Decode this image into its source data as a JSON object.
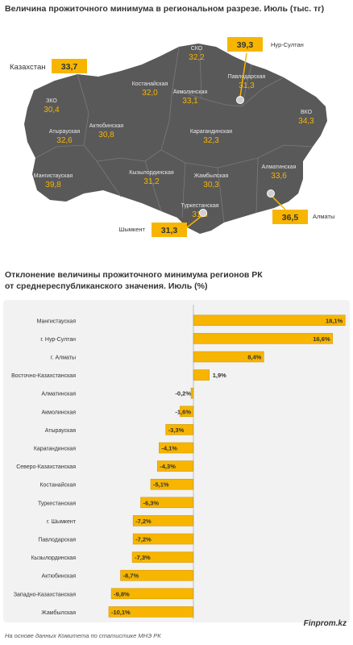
{
  "map_title": "Величина прожиточного минимума в региональном разрезе. Июль (тыс. тг)",
  "bar_title_line1": "Отклонение величины прожиточного минимума регионов РК",
  "bar_title_line2": "от среднереспубликанского значения. Июль (%)",
  "source": "На основе данных Комитета по статистике МНЭ РК",
  "brand": "Finprom.kz",
  "colors": {
    "accent": "#f7b500",
    "map": "#595959",
    "map_text": "#e8e8e8",
    "value_text": "#f7b500",
    "bar_border": "#c99200"
  },
  "map": {
    "kazakhstan": {
      "label": "Казахстан",
      "value": "33,7"
    },
    "regions": [
      {
        "name": "СКО",
        "value": "32,2"
      },
      {
        "name": "Костанайская",
        "value": "32,0"
      },
      {
        "name": "Акмолинская",
        "value": "33,1"
      },
      {
        "name": "Павлодарская",
        "value": "31,3"
      },
      {
        "name": "ЗКО",
        "value": "30,4"
      },
      {
        "name": "Актюбинская",
        "value": "30,8"
      },
      {
        "name": "ВКО",
        "value": "34,3"
      },
      {
        "name": "Атырауская",
        "value": "32,6"
      },
      {
        "name": "Карагандинская",
        "value": "32,3"
      },
      {
        "name": "Мангистауская",
        "value": "39,8"
      },
      {
        "name": "Кызылординская",
        "value": "31,2"
      },
      {
        "name": "Жамбылская",
        "value": "30,3"
      },
      {
        "name": "Алматинская",
        "value": "33,6"
      },
      {
        "name": "Туркестанская",
        "value": "31,6"
      }
    ],
    "cities": [
      {
        "name": "Нур-Султан",
        "value": "39,3"
      },
      {
        "name": "Алматы",
        "value": "36,5"
      },
      {
        "name": "Шымкент",
        "value": "31,3"
      }
    ]
  },
  "chart_data": {
    "type": "bar",
    "orientation": "horizontal",
    "categories": [
      "Мангистауская",
      "г. Нур-Султан",
      "г. Алматы",
      "Восточно-Казахстанская",
      "Алматинская",
      "Акмолинская",
      "Атырауская",
      "Карагандинская",
      "Северо-Казахстанская",
      "Костанайская",
      "Туркестанская",
      "г. Шымкент",
      "Павлодарская",
      "Кызылординская",
      "Актюбинская",
      "Западно-Казахстанская",
      "Жамбылская"
    ],
    "values": [
      18.1,
      16.6,
      8.4,
      1.9,
      -0.2,
      -1.6,
      -3.3,
      -4.1,
      -4.3,
      -5.1,
      -6.3,
      -7.2,
      -7.2,
      -7.3,
      -8.7,
      -9.8,
      -10.1
    ],
    "labels": [
      "18,1%",
      "16,6%",
      "8,4%",
      "1,9%",
      "-0,2%",
      "-1,6%",
      "-3,3%",
      "-4,1%",
      "-4,3%",
      "-5,1%",
      "-6,3%",
      "-7,2%",
      "-7,2%",
      "-7,3%",
      "-8,7%",
      "-9,8%",
      "-10,1%"
    ],
    "title": "Отклонение величины прожиточного минимума регионов РК от среднереспубликанского значения. Июль (%)",
    "xlim": [
      -10.1,
      18.1
    ]
  }
}
